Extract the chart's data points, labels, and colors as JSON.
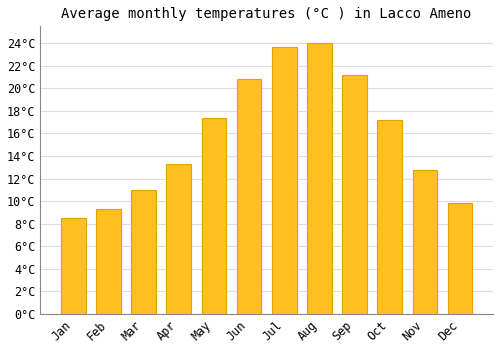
{
  "title": "Average monthly temperatures (°C ) in Lacco Ameno",
  "months": [
    "Jan",
    "Feb",
    "Mar",
    "Apr",
    "May",
    "Jun",
    "Jul",
    "Aug",
    "Sep",
    "Oct",
    "Nov",
    "Dec"
  ],
  "values": [
    8.5,
    9.3,
    11.0,
    13.3,
    17.4,
    20.8,
    23.7,
    24.0,
    21.2,
    17.2,
    12.8,
    9.8
  ],
  "bar_color": "#FFC020",
  "bar_edge_color": "#E8A000",
  "background_color": "#FFFFFF",
  "grid_color": "#DDDDDD",
  "ylim": [
    0,
    25.5
  ],
  "yticks": [
    0,
    2,
    4,
    6,
    8,
    10,
    12,
    14,
    16,
    18,
    20,
    22,
    24
  ],
  "title_fontsize": 10,
  "tick_fontsize": 8.5,
  "bar_width": 0.7
}
